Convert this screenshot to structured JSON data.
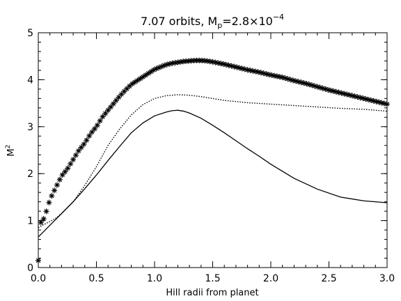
{
  "chart_data": {
    "type": "line",
    "title": {
      "main": "7.07 orbits, M",
      "sub": "p",
      "rest": "=2.8×10",
      "sup": "−4"
    },
    "xlabel": "Hill radii from planet",
    "ylabel": {
      "main": "M",
      "sup": "2"
    },
    "xlim": [
      0.0,
      3.0
    ],
    "ylim": [
      0,
      5
    ],
    "xticks": [
      "0.0",
      "0.5",
      "1.0",
      "1.5",
      "2.0",
      "2.5",
      "3.0"
    ],
    "xtick_values": [
      0.0,
      0.5,
      1.0,
      1.5,
      2.0,
      2.5,
      3.0
    ],
    "yticks": [
      "0",
      "1",
      "2",
      "3",
      "4",
      "5"
    ],
    "ytick_values": [
      0,
      1,
      2,
      3,
      4,
      5
    ],
    "grid": false,
    "series": [
      {
        "style": "asterisk-markers",
        "color": "#000000",
        "x": [
          0.0,
          0.02,
          0.05,
          0.08,
          0.1,
          0.15,
          0.2,
          0.25,
          0.3,
          0.35,
          0.4,
          0.45,
          0.5,
          0.55,
          0.6,
          0.65,
          0.7,
          0.75,
          0.8,
          0.85,
          0.9,
          0.95,
          1.0,
          1.05,
          1.1,
          1.15,
          1.2,
          1.25,
          1.3,
          1.35,
          1.4,
          1.45,
          1.5,
          1.6,
          1.7,
          1.8,
          1.9,
          2.0,
          2.1,
          2.2,
          2.3,
          2.4,
          2.5,
          2.6,
          2.7,
          2.8,
          2.9,
          3.0
        ],
        "y": [
          0.15,
          0.95,
          1.05,
          1.28,
          1.45,
          1.7,
          1.95,
          2.1,
          2.3,
          2.5,
          2.65,
          2.85,
          3.0,
          3.2,
          3.35,
          3.5,
          3.65,
          3.78,
          3.9,
          3.98,
          4.06,
          4.14,
          4.22,
          4.27,
          4.32,
          4.35,
          4.37,
          4.39,
          4.4,
          4.41,
          4.41,
          4.4,
          4.38,
          4.33,
          4.27,
          4.21,
          4.16,
          4.1,
          4.05,
          3.98,
          3.92,
          3.85,
          3.78,
          3.72,
          3.66,
          3.6,
          3.54,
          3.48
        ]
      },
      {
        "style": "dotted",
        "color": "#000000",
        "x": [
          0.0,
          0.05,
          0.1,
          0.15,
          0.2,
          0.3,
          0.4,
          0.5,
          0.6,
          0.7,
          0.8,
          0.9,
          1.0,
          1.1,
          1.2,
          1.3,
          1.4,
          1.5,
          1.6,
          1.8,
          2.0,
          2.2,
          2.4,
          2.6,
          2.8,
          3.0
        ],
        "y": [
          0.85,
          0.92,
          0.98,
          1.05,
          1.15,
          1.4,
          1.75,
          2.15,
          2.6,
          2.95,
          3.25,
          3.47,
          3.6,
          3.66,
          3.68,
          3.67,
          3.64,
          3.6,
          3.56,
          3.51,
          3.48,
          3.45,
          3.42,
          3.39,
          3.37,
          3.33
        ]
      },
      {
        "style": "solid",
        "color": "#000000",
        "x": [
          0.0,
          0.1,
          0.2,
          0.3,
          0.4,
          0.5,
          0.6,
          0.7,
          0.8,
          0.9,
          1.0,
          1.1,
          1.15,
          1.2,
          1.25,
          1.3,
          1.4,
          1.5,
          1.6,
          1.7,
          1.8,
          1.9,
          2.0,
          2.2,
          2.4,
          2.6,
          2.8,
          3.0
        ],
        "y": [
          0.65,
          0.9,
          1.15,
          1.4,
          1.68,
          1.97,
          2.28,
          2.58,
          2.87,
          3.08,
          3.23,
          3.31,
          3.34,
          3.35,
          3.33,
          3.29,
          3.18,
          3.03,
          2.87,
          2.7,
          2.53,
          2.37,
          2.2,
          1.9,
          1.67,
          1.5,
          1.42,
          1.38
        ]
      }
    ]
  }
}
